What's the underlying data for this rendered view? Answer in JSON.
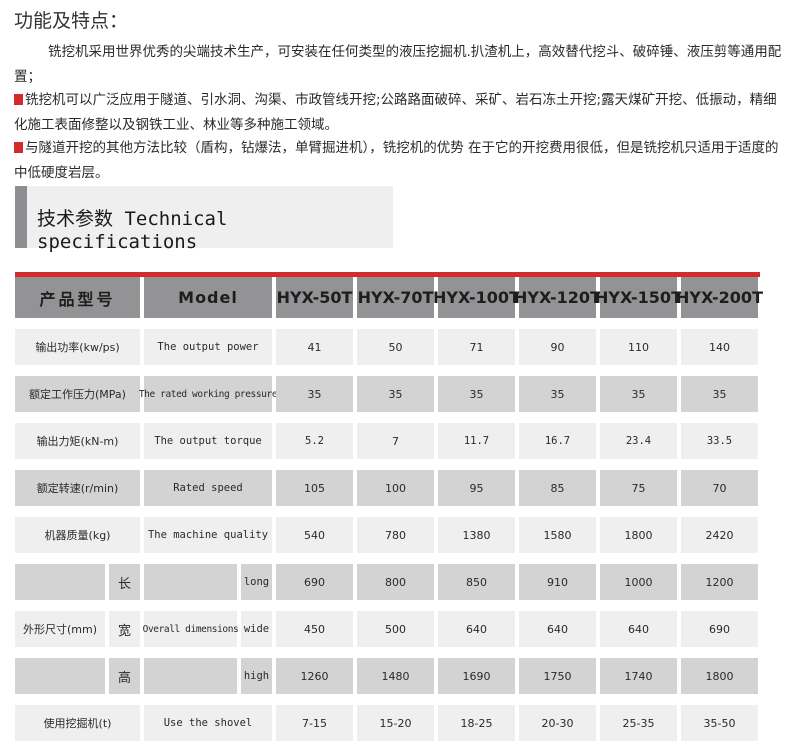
{
  "features": {
    "title": "功能及特点：",
    "paragraphs": [
      "铣挖机采用世界优秀的尖端技术生产，可安装在任何类型的液压挖掘机.扒渣机上，高效替代挖斗、破碎锤、液压剪等通用配置；",
      "铣挖机可以广泛应用于隧道、引水洞、沟渠、市政管线开挖;公路路面破碎、采矿、岩石冻土开挖;露天煤矿开挖、低振动，精细化施工表面修整以及钢铁工业、林业等多种施工领域。",
      "与隧道开挖的其他方法比较（盾构，钻爆法，单臂掘进机），铣挖机的优势 在于它的开挖费用很低，但是铣挖机只适用于适度的中低硬度岩层。"
    ],
    "bullet_color": "#d42a2a"
  },
  "specs": {
    "title": "技术参数 Technical specifications",
    "accent_color": "#d42a2a",
    "header": {
      "cn": "产品型号",
      "en": "Model",
      "models": [
        "HYX-50T",
        "HYX-70T",
        "HYX-100T",
        "HYX-120T",
        "HYX-150T",
        "HYX-200T"
      ]
    },
    "rows": [
      {
        "cn": "输出功率(kw/ps)",
        "en": "The output power",
        "values": [
          "41",
          "50",
          "71",
          "90",
          "110",
          "140"
        ]
      },
      {
        "cn": "额定工作压力(MPa)",
        "en": "The rated working pressure",
        "values": [
          "35",
          "35",
          "35",
          "35",
          "35",
          "35"
        ]
      },
      {
        "cn": "输出力矩(kN-m)",
        "en": "The output torque",
        "values": [
          "5.2",
          "7",
          "11.7",
          "16.7",
          "23.4",
          "33.5"
        ]
      },
      {
        "cn": "额定转速(r/min)",
        "en": "Rated speed",
        "values": [
          "105",
          "100",
          "95",
          "85",
          "75",
          "70"
        ]
      },
      {
        "cn": "机器质量(kg)",
        "en": "The machine quality",
        "values": [
          "540",
          "780",
          "1380",
          "1580",
          "1800",
          "2420"
        ]
      },
      {
        "cn": "",
        "cn_sub": "长",
        "en": "",
        "en_sub": "long",
        "values": [
          "690",
          "800",
          "850",
          "910",
          "1000",
          "1200"
        ]
      },
      {
        "cn": "外形尺寸(mm)",
        "cn_sub": "宽",
        "en": "Overall dimensions",
        "en_sub": "wide",
        "values": [
          "450",
          "500",
          "640",
          "640",
          "640",
          "690"
        ]
      },
      {
        "cn": "",
        "cn_sub": "高",
        "en": "",
        "en_sub": "high",
        "values": [
          "1260",
          "1480",
          "1690",
          "1750",
          "1740",
          "1800"
        ]
      },
      {
        "cn": "使用挖掘机(t)",
        "en": "Use the shovel",
        "values": [
          "7-15",
          "15-20",
          "18-25",
          "20-30",
          "25-35",
          "35-50"
        ]
      }
    ]
  }
}
